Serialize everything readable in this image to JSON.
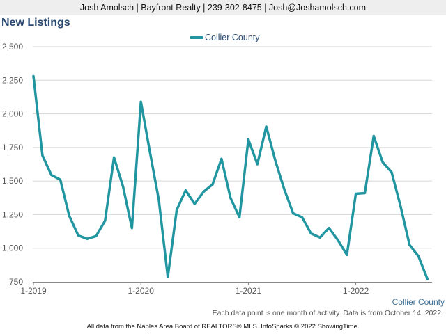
{
  "header": {
    "contact": "Josh Amolsch | Bayfront Realty | 239-302-8475 | Josh@Joshamolsch.com"
  },
  "title": "New Listings",
  "footnote": "Each data point is one month of activity. Data is from October 14, 2022.",
  "credits": "All data from the Naples Area Board of REALTORS® MLS. InfoSparks © 2022 ShowingTime.",
  "colors": {
    "series": "#2196a0",
    "grid": "#d6d6d6",
    "axis_text": "#555555",
    "title": "#2a4a72"
  },
  "chart_data": {
    "type": "line",
    "title": "New Listings",
    "legend_position": "top-center",
    "grid": "horizontal",
    "ylim": [
      750,
      2500
    ],
    "y_ticks": [
      750,
      1000,
      1250,
      1500,
      1750,
      2000,
      2250,
      2500
    ],
    "y_tick_labels": [
      "750",
      "1,000",
      "1,250",
      "1,500",
      "1,750",
      "2,000",
      "2,250",
      "2,500"
    ],
    "x_tick_labels": [
      "1-2019",
      "1-2020",
      "1-2021",
      "1-2022"
    ],
    "x_end_label": "Collier County",
    "x": [
      "2019-01",
      "2019-02",
      "2019-03",
      "2019-04",
      "2019-05",
      "2019-06",
      "2019-07",
      "2019-08",
      "2019-09",
      "2019-10",
      "2019-11",
      "2019-12",
      "2020-01",
      "2020-02",
      "2020-03",
      "2020-04",
      "2020-05",
      "2020-06",
      "2020-07",
      "2020-08",
      "2020-09",
      "2020-10",
      "2020-11",
      "2020-12",
      "2021-01",
      "2021-02",
      "2021-03",
      "2021-04",
      "2021-05",
      "2021-06",
      "2021-07",
      "2021-08",
      "2021-09",
      "2021-10",
      "2021-11",
      "2021-12",
      "2022-01",
      "2022-02",
      "2022-03",
      "2022-04",
      "2022-05",
      "2022-06",
      "2022-07",
      "2022-08",
      "2022-09"
    ],
    "series": [
      {
        "name": "Collier County",
        "color": "#2196a0",
        "values": [
          2280,
          1690,
          1545,
          1510,
          1240,
          1095,
          1070,
          1090,
          1205,
          1675,
          1460,
          1150,
          2090,
          1720,
          1360,
          785,
          1285,
          1430,
          1330,
          1420,
          1475,
          1665,
          1375,
          1230,
          1810,
          1625,
          1905,
          1655,
          1440,
          1260,
          1230,
          1110,
          1080,
          1150,
          1060,
          950,
          1405,
          1410,
          1835,
          1640,
          1565,
          1310,
          1025,
          940,
          770
        ]
      }
    ]
  }
}
